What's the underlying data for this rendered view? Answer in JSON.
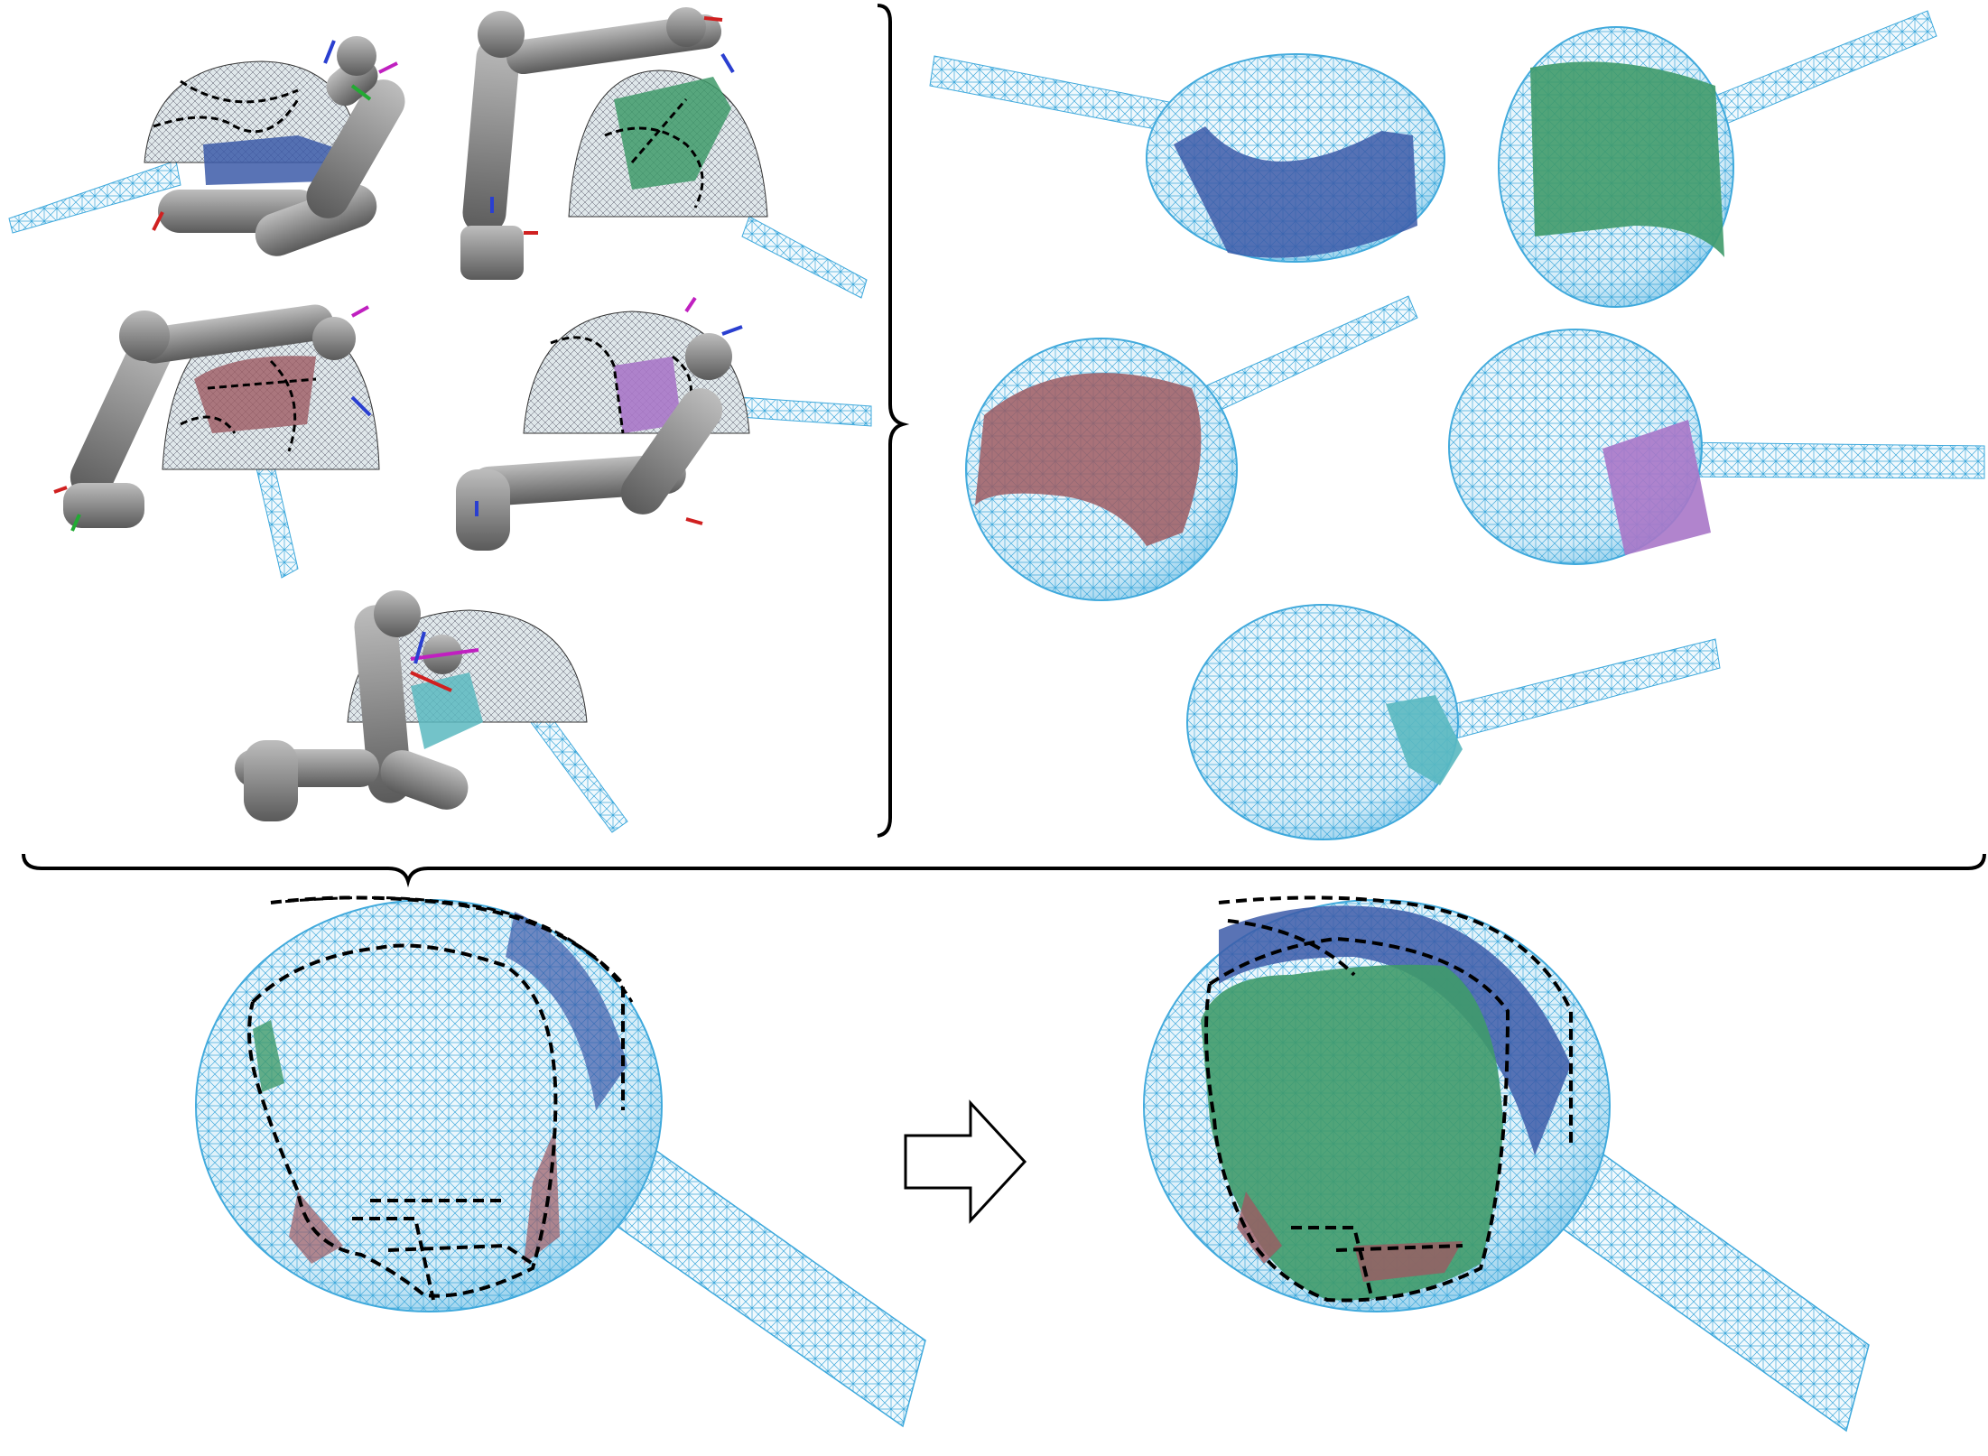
{
  "figure": {
    "robot_scenes": [
      {
        "id": "robot-scene-1",
        "patch": "blue"
      },
      {
        "id": "robot-scene-2",
        "patch": "green"
      },
      {
        "id": "robot-scene-3",
        "patch": "red"
      },
      {
        "id": "robot-scene-4",
        "patch": "purple"
      },
      {
        "id": "robot-scene-5",
        "patch": "teal"
      }
    ],
    "mesh_views": [
      {
        "id": "mesh-view-1",
        "patch": "blue"
      },
      {
        "id": "mesh-view-2",
        "patch": "green"
      },
      {
        "id": "mesh-view-3",
        "patch": "red"
      },
      {
        "id": "mesh-view-4",
        "patch": "purple"
      },
      {
        "id": "mesh-view-5",
        "patch": "teal"
      }
    ],
    "colors": {
      "mesh_line": "#3fa9dc",
      "mesh_fill": "#eaf6fb",
      "robot_gray": "#8c8c8c",
      "robot_dark": "#5e5e5e",
      "bracket": "#000000",
      "blue": "#3c5aa8",
      "green": "#3f9a6a",
      "red": "#9c5a62",
      "purple": "#a877c8",
      "teal": "#5ab8c0",
      "dashed_boundary": "#000000"
    },
    "icons": [
      "right-arrow-icon"
    ]
  }
}
